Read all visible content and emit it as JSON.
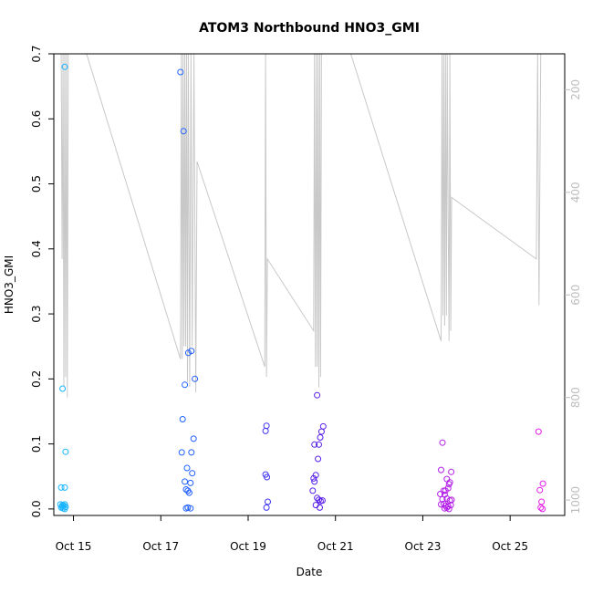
{
  "chart_data": {
    "type": "scatter",
    "title": "ATOM3 Northbound HNO3_GMI",
    "xlabel": "Date",
    "ylabel": "HNO3_GMI",
    "xlim": [
      14.55,
      26.25
    ],
    "ylim": [
      -0.01,
      0.7
    ],
    "xticks": [
      {
        "v": 15,
        "label": "Oct 15"
      },
      {
        "v": 17,
        "label": "Oct 17"
      },
      {
        "v": 19,
        "label": "Oct 19"
      },
      {
        "v": 21,
        "label": "Oct 21"
      },
      {
        "v": 23,
        "label": "Oct 23"
      },
      {
        "v": 25,
        "label": "Oct 25"
      }
    ],
    "yticks": [
      0.0,
      0.1,
      0.2,
      0.3,
      0.4,
      0.5,
      0.6,
      0.7
    ],
    "ytick_labels": [
      "0.0",
      "0.1",
      "0.2",
      "0.3",
      "0.4",
      "0.5",
      "0.6",
      "0.7"
    ],
    "y2lim": [
      130,
      1030
    ],
    "y2_reversed": true,
    "y2ticks": [
      200,
      400,
      600,
      800,
      1000
    ],
    "y2tick_labels": [
      "200",
      "400",
      "600",
      "800",
      "1000"
    ],
    "grid": false,
    "legend": "none",
    "colors": {
      "marker_gradient": [
        "#17b6ff",
        "#1e64ff",
        "#4b1ee8",
        "#a81ee8",
        "#e41ee8"
      ],
      "altitude_line": "#c8c8c8"
    },
    "points": [
      [
        14.8,
        0.68
      ],
      [
        14.75,
        0.185
      ],
      [
        14.82,
        0.088
      ],
      [
        14.72,
        0.033
      ],
      [
        14.8,
        0.033
      ],
      [
        14.7,
        0.007
      ],
      [
        14.75,
        0.006
      ],
      [
        14.8,
        0.007
      ],
      [
        14.72,
        0.002
      ],
      [
        14.76,
        0.001
      ],
      [
        14.8,
        0.0
      ],
      [
        14.74,
        0.004
      ],
      [
        14.82,
        0.003
      ],
      [
        14.78,
        0.005
      ],
      [
        17.45,
        0.672
      ],
      [
        17.52,
        0.581
      ],
      [
        17.55,
        0.191
      ],
      [
        17.63,
        0.24
      ],
      [
        17.7,
        0.243
      ],
      [
        17.78,
        0.2
      ],
      [
        17.5,
        0.138
      ],
      [
        17.75,
        0.108
      ],
      [
        17.48,
        0.087
      ],
      [
        17.7,
        0.087
      ],
      [
        17.6,
        0.063
      ],
      [
        17.72,
        0.055
      ],
      [
        17.55,
        0.042
      ],
      [
        17.68,
        0.04
      ],
      [
        17.58,
        0.03
      ],
      [
        17.62,
        0.028
      ],
      [
        17.65,
        0.025
      ],
      [
        17.58,
        0.001
      ],
      [
        17.62,
        0.002
      ],
      [
        17.68,
        0.001
      ],
      [
        19.42,
        0.128
      ],
      [
        19.4,
        0.12
      ],
      [
        19.4,
        0.053
      ],
      [
        19.43,
        0.049
      ],
      [
        19.45,
        0.011
      ],
      [
        19.42,
        0.002
      ],
      [
        20.58,
        0.175
      ],
      [
        20.72,
        0.127
      ],
      [
        20.68,
        0.119
      ],
      [
        20.65,
        0.11
      ],
      [
        20.52,
        0.099
      ],
      [
        20.62,
        0.099
      ],
      [
        20.6,
        0.077
      ],
      [
        20.55,
        0.052
      ],
      [
        20.5,
        0.047
      ],
      [
        20.52,
        0.042
      ],
      [
        20.48,
        0.028
      ],
      [
        20.58,
        0.017
      ],
      [
        20.62,
        0.014
      ],
      [
        20.66,
        0.012
      ],
      [
        20.7,
        0.013
      ],
      [
        20.55,
        0.006
      ],
      [
        20.64,
        0.002
      ],
      [
        23.45,
        0.102
      ],
      [
        23.42,
        0.06
      ],
      [
        23.65,
        0.057
      ],
      [
        23.55,
        0.046
      ],
      [
        23.4,
        0.023
      ],
      [
        23.5,
        0.022
      ],
      [
        23.48,
        0.028
      ],
      [
        23.52,
        0.028
      ],
      [
        23.6,
        0.038
      ],
      [
        23.62,
        0.041
      ],
      [
        23.58,
        0.032
      ],
      [
        23.45,
        0.015
      ],
      [
        23.55,
        0.016
      ],
      [
        23.62,
        0.013
      ],
      [
        23.66,
        0.014
      ],
      [
        23.42,
        0.007
      ],
      [
        23.48,
        0.008
      ],
      [
        23.52,
        0.005
      ],
      [
        23.58,
        0.004
      ],
      [
        23.64,
        0.006
      ],
      [
        23.5,
        0.001
      ],
      [
        23.55,
        0.002
      ],
      [
        23.6,
        0.0
      ],
      [
        25.65,
        0.119
      ],
      [
        25.75,
        0.039
      ],
      [
        25.68,
        0.029
      ],
      [
        25.72,
        0.011
      ],
      [
        25.7,
        0.002
      ],
      [
        25.74,
        0.0
      ]
    ],
    "altitude_profile": [
      [
        14.72,
        130
      ],
      [
        14.74,
        530
      ],
      [
        14.76,
        130
      ],
      [
        14.78,
        780
      ],
      [
        14.8,
        130
      ],
      [
        14.82,
        760
      ],
      [
        14.84,
        130
      ],
      [
        14.86,
        800
      ],
      [
        14.88,
        130
      ],
      [
        15.3,
        130
      ],
      [
        17.45,
        725
      ],
      [
        17.47,
        130
      ],
      [
        17.49,
        725
      ],
      [
        17.51,
        130
      ],
      [
        17.53,
        700
      ],
      [
        17.55,
        130
      ],
      [
        17.57,
        700
      ],
      [
        17.59,
        130
      ],
      [
        17.61,
        770
      ],
      [
        17.63,
        130
      ],
      [
        17.66,
        780
      ],
      [
        17.69,
        130
      ],
      [
        17.72,
        700
      ],
      [
        17.76,
        130
      ],
      [
        17.8,
        790
      ],
      [
        17.83,
        340
      ],
      [
        19.38,
        740
      ],
      [
        19.4,
        130
      ],
      [
        19.42,
        760
      ],
      [
        19.44,
        530
      ],
      [
        20.5,
        670
      ],
      [
        20.52,
        130
      ],
      [
        20.54,
        740
      ],
      [
        20.56,
        130
      ],
      [
        20.58,
        740
      ],
      [
        20.6,
        130
      ],
      [
        20.62,
        780
      ],
      [
        20.64,
        130
      ],
      [
        20.66,
        760
      ],
      [
        20.68,
        130
      ],
      [
        21.35,
        130
      ],
      [
        23.42,
        690
      ],
      [
        23.44,
        130
      ],
      [
        23.46,
        640
      ],
      [
        23.48,
        130
      ],
      [
        23.5,
        660
      ],
      [
        23.52,
        130
      ],
      [
        23.54,
        640
      ],
      [
        23.56,
        130
      ],
      [
        23.58,
        440
      ],
      [
        23.6,
        690
      ],
      [
        23.62,
        130
      ],
      [
        23.64,
        670
      ],
      [
        23.66,
        410
      ],
      [
        25.6,
        530
      ],
      [
        25.63,
        130
      ],
      [
        25.66,
        620
      ],
      [
        25.7,
        130
      ]
    ]
  }
}
